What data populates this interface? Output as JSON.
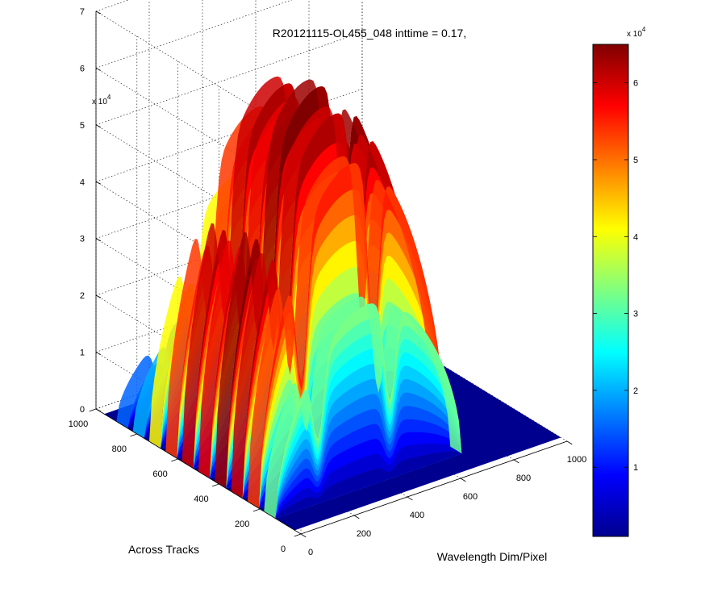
{
  "chart_data": {
    "type": "surface",
    "title": "R20121115-OL455_048 inttime = 0.17,",
    "xlabel": "Wavelength Dim/Pixel",
    "ylabel": "Across Tracks",
    "zlabel": "",
    "x_ticks": [
      "0",
      "200",
      "400",
      "600",
      "800",
      "1000"
    ],
    "y_ticks": [
      "0",
      "200",
      "400",
      "600",
      "800",
      "1000"
    ],
    "z_ticks": [
      "0",
      "1",
      "2",
      "3",
      "4",
      "5",
      "6",
      "7"
    ],
    "z_exponent": "x 10",
    "z_exponent_power": "4",
    "xlim": [
      0,
      1000
    ],
    "ylim": [
      0,
      1000
    ],
    "zlim": [
      0,
      70000
    ],
    "grid": true,
    "colormap": "jet",
    "colorbar": {
      "ticks": [
        "1",
        "2",
        "3",
        "4",
        "5",
        "6"
      ],
      "exponent": "x 10",
      "exponent_power": "4",
      "range": [
        1000,
        65000
      ]
    },
    "wavelength_profile": {
      "x_extent": [
        0,
        700
      ],
      "peak_positions": [
        90,
        250,
        520
      ],
      "notch_positions": [
        160,
        430
      ]
    },
    "strips": [
      {
        "across_track": 900,
        "peak": 15000
      },
      {
        "across_track": 820,
        "peak": 20000
      },
      {
        "across_track": 740,
        "peak": 42000
      },
      {
        "across_track": 660,
        "peak": 55000
      },
      {
        "across_track": 580,
        "peak": 62000
      },
      {
        "across_track": 500,
        "peak": 60000
      },
      {
        "across_track": 420,
        "peak": 65000
      },
      {
        "across_track": 340,
        "peak": 62000
      },
      {
        "across_track": 260,
        "peak": 55000
      },
      {
        "across_track": 180,
        "peak": 32000
      }
    ],
    "colors": {
      "background": "#ffffff",
      "floor": "#00008f"
    }
  }
}
